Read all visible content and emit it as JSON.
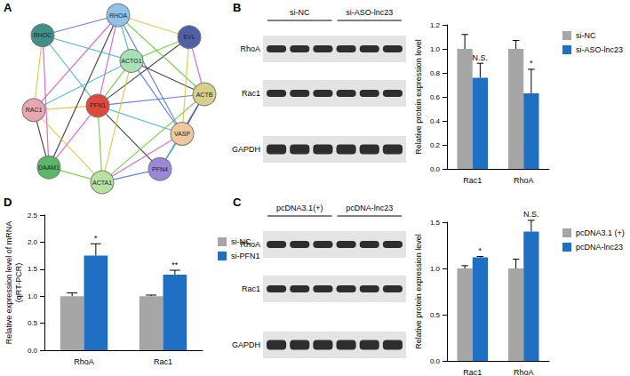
{
  "panel_labels": [
    "A",
    "B",
    "C",
    "D"
  ],
  "network": {
    "nodes": [
      "RHOC",
      "RHOA",
      "EVL",
      "ACTG1",
      "ACTB",
      "RAC1",
      "PFN1",
      "VASP",
      "DAAM1",
      "PFN4",
      "ACTA1"
    ],
    "edges": [
      [
        "PFN1",
        "RHOC"
      ],
      [
        "PFN1",
        "RHOA"
      ],
      [
        "PFN1",
        "EVL"
      ],
      [
        "PFN1",
        "ACTG1"
      ],
      [
        "PFN1",
        "ACTB"
      ],
      [
        "PFN1",
        "RAC1"
      ],
      [
        "PFN1",
        "VASP"
      ],
      [
        "PFN1",
        "DAAM1"
      ],
      [
        "PFN1",
        "PFN4"
      ],
      [
        "PFN1",
        "ACTA1"
      ],
      [
        "RHOA",
        "RHOC"
      ],
      [
        "RHOA",
        "EVL"
      ],
      [
        "RHOA",
        "ACTG1"
      ],
      [
        "RHOA",
        "RAC1"
      ],
      [
        "RHOA",
        "DAAM1"
      ],
      [
        "RHOA",
        "ACTB"
      ],
      [
        "RHOA",
        "VASP"
      ],
      [
        "RHOC",
        "RAC1"
      ],
      [
        "RHOC",
        "ACTG1"
      ],
      [
        "RHOC",
        "DAAM1"
      ],
      [
        "ACTG1",
        "ACTB"
      ],
      [
        "ACTG1",
        "EVL"
      ],
      [
        "ACTG1",
        "VASP"
      ],
      [
        "ACTG1",
        "ACTA1"
      ],
      [
        "ACTG1",
        "RAC1"
      ],
      [
        "ACTB",
        "EVL"
      ],
      [
        "ACTB",
        "VASP"
      ],
      [
        "ACTB",
        "ACTA1"
      ],
      [
        "ACTB",
        "PFN4"
      ],
      [
        "VASP",
        "EVL"
      ],
      [
        "VASP",
        "PFN4"
      ],
      [
        "VASP",
        "ACTA1"
      ],
      [
        "DAAM1",
        "RAC1"
      ],
      [
        "DAAM1",
        "ACTA1"
      ],
      [
        "PFN4",
        "ACTA1"
      ],
      [
        "RAC1",
        "ACTA1"
      ]
    ]
  },
  "blots": [
    {
      "groups": [
        {
          "label": "si-NC",
          "lanes": 3
        },
        {
          "label": "si-ASO-lnc23",
          "lanes": 3
        }
      ],
      "proteins": [
        "RhoA",
        "Rac1",
        "GAPDH"
      ]
    },
    {
      "groups": [
        {
          "label": "pcDNA3.1(+)",
          "lanes": 3
        },
        {
          "label": "pcDNA-lnc23",
          "lanes": 3
        }
      ],
      "proteins": [
        "RhoA",
        "Rac1",
        "GAPDH"
      ]
    }
  ],
  "chart_data": [
    {
      "type": "bar",
      "ylabel": "Relative protein expression level",
      "categories": [
        "Rac1",
        "RhoA"
      ],
      "series": [
        {
          "name": "si-NC",
          "color": "#a6a6a6",
          "values": [
            1.0,
            1.0
          ],
          "errors": [
            0.12,
            0.07
          ],
          "annotations": [
            null,
            null
          ]
        },
        {
          "name": "si-ASO-lnc23",
          "color": "#1f6fc5",
          "values": [
            0.76,
            0.63
          ],
          "errors": [
            0.12,
            0.2
          ],
          "annotations": [
            "N.S.",
            "*"
          ]
        }
      ],
      "ylim": [
        0,
        1.2
      ],
      "yticks": [
        {
          "value": 0,
          "label": "0.0"
        },
        0.2,
        0.4,
        0.6,
        0.8,
        {
          "value": 1,
          "label": "1.0"
        },
        1.2
      ],
      "grid": false,
      "legend": "right"
    },
    {
      "type": "bar",
      "ylabel": "Relative protein expression level",
      "categories": [
        "Rac1",
        "RhoA"
      ],
      "series": [
        {
          "name": "pcDNA3.1 (+)",
          "color": "#a6a6a6",
          "values": [
            1.0,
            1.0
          ],
          "errors": [
            0.03,
            0.1
          ],
          "annotations": [
            null,
            null
          ]
        },
        {
          "name": "pcDNA-lnc23",
          "color": "#1f6fc5",
          "values": [
            1.12,
            1.4
          ],
          "errors": [
            0.01,
            0.12
          ],
          "annotations": [
            "*",
            "N.S."
          ]
        }
      ],
      "ylim": [
        0,
        1.5
      ],
      "yticks": [
        {
          "value": 0,
          "label": "0.0"
        },
        0.5,
        {
          "value": 1,
          "label": "1.0"
        },
        1.5
      ],
      "grid": false,
      "legend": "right"
    },
    {
      "type": "bar",
      "ylabel": "Relative expression level of mRNA\n(qRT-PCR)",
      "categories": [
        "RhoA",
        "Rac1"
      ],
      "series": [
        {
          "name": "si-NC",
          "color": "#a6a6a6",
          "values": [
            1.0,
            1.0
          ],
          "errors": [
            0.06,
            0.02
          ],
          "annotations": [
            null,
            null
          ]
        },
        {
          "name": "si-PFN1",
          "color": "#1f6fc5",
          "values": [
            1.75,
            1.4
          ],
          "errors": [
            0.22,
            0.08
          ],
          "annotations": [
            "*",
            "**"
          ]
        }
      ],
      "ylim": [
        0,
        2.5
      ],
      "yticks": [
        {
          "value": 0,
          "label": "0.0"
        },
        0.5,
        {
          "value": 1,
          "label": "1.0"
        },
        1.5,
        {
          "value": 2,
          "label": "2.0"
        },
        2.5
      ],
      "grid": false,
      "legend": "right"
    }
  ]
}
